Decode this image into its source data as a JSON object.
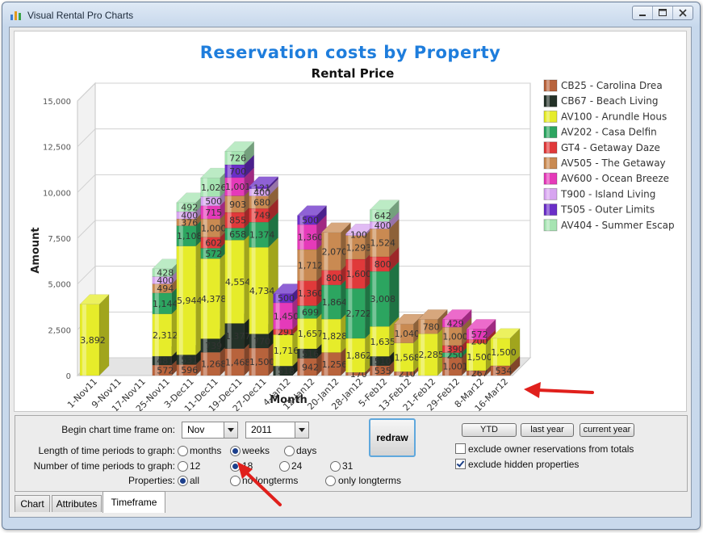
{
  "window": {
    "title": "Visual Rental Pro Charts"
  },
  "chart_data": {
    "type": "bar",
    "stacked": true,
    "three_d": true,
    "title": "Reservation costs by Property",
    "subtitle": "Rental Price",
    "xlabel": "Month",
    "ylabel": "Amount",
    "ylim": [
      0,
      15000
    ],
    "yticks": [
      "0",
      "2,500",
      "5,000",
      "7,500",
      "10,000",
      "12,500",
      "15,000"
    ],
    "grid": true,
    "legend_position": "right",
    "categories": [
      "1-Nov11",
      "9-Nov11",
      "17-Nov11",
      "25-Nov11",
      "3-Dec11",
      "11-Dec11",
      "19-Dec11",
      "27-Dec11",
      "4-Jan12",
      "12-Jan12",
      "20-Jan12",
      "28-Jan12",
      "5-Feb12",
      "13-Feb12",
      "21-Feb12",
      "29-Feb12",
      "8-Mar12",
      "16-Mar12"
    ],
    "series": [
      {
        "name": "CB25 - Carolina Drea",
        "color": "#b8633c",
        "values": [
          null,
          null,
          null,
          572,
          596,
          1268,
          1468,
          1500,
          null,
          942,
          1256,
          170,
          535,
          210,
          null,
          1001,
          267,
          534
        ]
      },
      {
        "name": "CB67 - Beach Living",
        "color": "#233127",
        "values": [
          null,
          null,
          null,
          481,
          531,
          739,
          1377,
          770,
          518,
          516,
          null,
          null,
          510,
          null,
          null,
          null,
          null,
          null
        ]
      },
      {
        "name": "AV100 - Arundle Hous",
        "color": "#e6ec2a",
        "values": [
          3892,
          null,
          null,
          2312,
          5944,
          4378,
          4554,
          4734,
          1716,
          1657,
          1828,
          1862,
          1635,
          1568,
          2285,
          null,
          1500,
          1500
        ]
      },
      {
        "name": "AV202 - Casa Delfin",
        "color": "#2ca560",
        "values": [
          null,
          null,
          null,
          1144,
          1108,
          572,
          658,
          1374,
          null,
          699,
          1864,
          2722,
          3008,
          null,
          null,
          250,
          null,
          null
        ]
      },
      {
        "name": "GT4 - Getaway Daze",
        "color": "#e0393a",
        "values": [
          null,
          null,
          null,
          null,
          null,
          602,
          855,
          749,
          291,
          1360,
          800,
          1600,
          800,
          null,
          null,
          390,
          200,
          null
        ]
      },
      {
        "name": "AV505 - The Getaway",
        "color": "#c98a52",
        "values": [
          null,
          null,
          null,
          494,
          376,
          1000,
          903,
          680,
          null,
          1712,
          2070,
          1293,
          1524,
          1040,
          780,
          1000,
          null,
          null
        ]
      },
      {
        "name": "AV600 - Ocean Breeze",
        "color": "#e53ab9",
        "values": [
          null,
          null,
          null,
          null,
          null,
          715,
          1001,
          null,
          1450,
          1360,
          null,
          null,
          null,
          null,
          null,
          429,
          572,
          null
        ]
      },
      {
        "name": "T900 - Island Living",
        "color": "#d7a4f0",
        "values": [
          null,
          null,
          null,
          400,
          400,
          500,
          null,
          400,
          null,
          null,
          null,
          100,
          400,
          null,
          null,
          null,
          null,
          null
        ]
      },
      {
        "name": "T505 - Outer Limits",
        "color": "#6a2ec8",
        "values": [
          null,
          null,
          null,
          null,
          null,
          null,
          700,
          121,
          500,
          500,
          null,
          null,
          null,
          null,
          null,
          null,
          null,
          null
        ]
      },
      {
        "name": "AV404 - Summer Escap",
        "color": "#a6e4b2",
        "values": [
          null,
          null,
          null,
          428,
          492,
          1026,
          726,
          null,
          null,
          null,
          null,
          null,
          642,
          null,
          null,
          null,
          null,
          null
        ]
      }
    ]
  },
  "controls": {
    "begin_label": "Begin chart time frame on:",
    "begin_month": "Nov",
    "begin_year": "2011",
    "redraw_label": "redraw",
    "length_label": "Length of time periods to graph:",
    "length_options": [
      "months",
      "weeks",
      "days"
    ],
    "length_selected": "weeks",
    "number_label": "Number of time periods to graph:",
    "number_options": [
      "12",
      "18",
      "24",
      "31"
    ],
    "number_selected": "18",
    "properties_label": "Properties:",
    "properties_options": [
      "all",
      "no longterms",
      "only longterms"
    ],
    "properties_selected": "all",
    "ytd_label": "YTD",
    "last_year_label": "last year",
    "current_year_label": "current year",
    "exclude_owner_label": "exclude owner reservations from totals",
    "exclude_owner_checked": false,
    "exclude_hidden_label": "exclude hidden properties",
    "exclude_hidden_checked": true
  },
  "tabs": [
    {
      "label": "Chart",
      "active": false
    },
    {
      "label": "Attributes",
      "active": false
    },
    {
      "label": "Timeframe",
      "active": true
    }
  ],
  "colors": {
    "title_blue": "#1e7ddc",
    "annotation_red": "#e0201c"
  }
}
